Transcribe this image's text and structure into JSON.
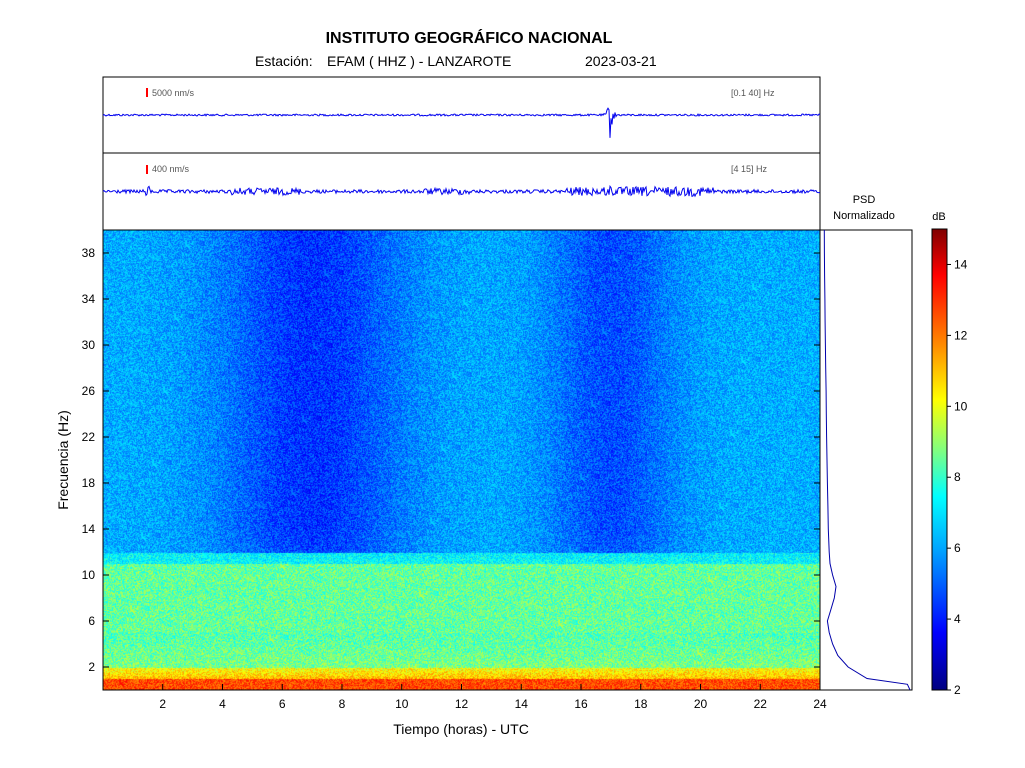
{
  "header": {
    "title": "INSTITUTO GEOGRÁFICO NACIONAL",
    "station_prefix": "Estación:",
    "station": "EFAM ( HHZ ) - LANZAROTE",
    "date": "2023-03-21"
  },
  "traces": [
    {
      "amplitude_label": "5000 nm/s",
      "band_label": "[0.1 40]  Hz",
      "event_time_h": 16.98,
      "noise_level": 0.12
    },
    {
      "amplitude_label": "400 nm/s",
      "band_label": "[4 15]  Hz",
      "event_time_h": 16.98,
      "noise_level": 0.22
    }
  ],
  "psd": {
    "title_line1": "PSD",
    "title_line2": "Normalizado"
  },
  "colorbar": {
    "unit": "dB",
    "ticks": [
      2,
      4,
      6,
      8,
      10,
      12,
      14
    ],
    "range": [
      2,
      15
    ]
  },
  "chart_data": {
    "type": "heatmap",
    "xlabel": "Tiempo (horas) - UTC",
    "ylabel": "Frecuencia  (Hz)",
    "xlim": [
      0,
      24
    ],
    "ylim": [
      0,
      40
    ],
    "xticks": [
      2,
      4,
      6,
      8,
      10,
      12,
      14,
      16,
      18,
      20,
      22,
      24
    ],
    "yticks": [
      2,
      6,
      10,
      14,
      18,
      22,
      26,
      30,
      34,
      38
    ],
    "colormap": [
      "#000080",
      "#0000ff",
      "#00a0ff",
      "#00ffff",
      "#80ff80",
      "#ffff00",
      "#ff8000",
      "#ff0000",
      "#800000"
    ],
    "psd_profile": {
      "frequency_hz": [
        0,
        0.5,
        1,
        2,
        3,
        4,
        5,
        6,
        7,
        8,
        9,
        10,
        11,
        12,
        14,
        16,
        18,
        20,
        22,
        24,
        26,
        28,
        30,
        32,
        34,
        36,
        38,
        40
      ],
      "power_normalized": [
        1.0,
        0.97,
        0.5,
        0.28,
        0.16,
        0.1,
        0.06,
        0.04,
        0.08,
        0.12,
        0.14,
        0.1,
        0.07,
        0.06,
        0.05,
        0.045,
        0.04,
        0.035,
        0.03,
        0.027,
        0.024,
        0.02,
        0.016,
        0.013,
        0.01,
        0.007,
        0.005,
        0.003
      ]
    }
  }
}
